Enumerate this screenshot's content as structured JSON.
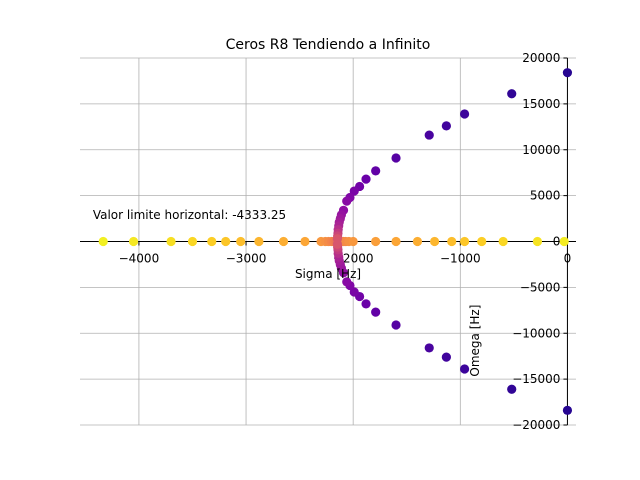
{
  "chart_data": {
    "type": "scatter",
    "title": "Ceros R8 Tendiendo a Infinito",
    "xlabel": "Sigma [Hz]",
    "ylabel": "Omega [Hz]",
    "xlim": [
      -4550,
      80
    ],
    "ylim": [
      -20000,
      20000
    ],
    "grid": true,
    "colormap": "plasma",
    "xticks": [
      -4000,
      -3000,
      -2000,
      -1000,
      0
    ],
    "xtick_labels": [
      "−4000",
      "−3000",
      "−2000",
      "−1000",
      "0"
    ],
    "yticks": [
      20000,
      15000,
      10000,
      5000,
      0,
      -5000,
      -10000,
      -15000,
      -20000
    ],
    "ytick_labels": [
      "20000",
      "15000",
      "10000",
      "5000",
      "0",
      "−5000",
      "−10000",
      "−15000",
      "−20000"
    ],
    "annotation": {
      "text": "Valor limite horizontal: -4333.25",
      "x": -4430,
      "y": 2900
    },
    "upper_branch": [
      {
        "x": 0,
        "y": 18400,
        "c": 0.05
      },
      {
        "x": -520,
        "y": 16100,
        "c": 0.07
      },
      {
        "x": -960,
        "y": 13900,
        "c": 0.09
      },
      {
        "x": -1130,
        "y": 12600,
        "c": 0.1
      },
      {
        "x": -1290,
        "y": 11600,
        "c": 0.12
      },
      {
        "x": -1600,
        "y": 9100,
        "c": 0.15
      },
      {
        "x": -1790,
        "y": 7700,
        "c": 0.18
      },
      {
        "x": -1880,
        "y": 6800,
        "c": 0.2
      },
      {
        "x": -1940,
        "y": 6000,
        "c": 0.22
      },
      {
        "x": -1990,
        "y": 5500,
        "c": 0.24
      },
      {
        "x": -2030,
        "y": 4800,
        "c": 0.26
      },
      {
        "x": -2060,
        "y": 4400,
        "c": 0.28
      },
      {
        "x": -2090,
        "y": 3400,
        "c": 0.3
      },
      {
        "x": -2110,
        "y": 2900,
        "c": 0.32
      },
      {
        "x": -2120,
        "y": 2500,
        "c": 0.34
      },
      {
        "x": -2130,
        "y": 2100,
        "c": 0.36
      },
      {
        "x": -2135,
        "y": 1700,
        "c": 0.38
      },
      {
        "x": -2140,
        "y": 1300,
        "c": 0.42
      },
      {
        "x": -2142,
        "y": 900,
        "c": 0.46
      },
      {
        "x": -2145,
        "y": 600,
        "c": 0.5
      },
      {
        "x": -2147,
        "y": 300,
        "c": 0.55
      }
    ],
    "real_axis": [
      {
        "x": -4333.25,
        "y": 0,
        "c": 0.98
      },
      {
        "x": -4050,
        "y": 0,
        "c": 0.96
      },
      {
        "x": -3700,
        "y": 0,
        "c": 0.94
      },
      {
        "x": -3500,
        "y": 0,
        "c": 0.92
      },
      {
        "x": -3320,
        "y": 0,
        "c": 0.9
      },
      {
        "x": -3190,
        "y": 0,
        "c": 0.88
      },
      {
        "x": -3050,
        "y": 0,
        "c": 0.86
      },
      {
        "x": -2880,
        "y": 0,
        "c": 0.84
      },
      {
        "x": -2650,
        "y": 0,
        "c": 0.82
      },
      {
        "x": -2450,
        "y": 0,
        "c": 0.8
      },
      {
        "x": -2300,
        "y": 0,
        "c": 0.76
      },
      {
        "x": -2260,
        "y": 0,
        "c": 0.74
      },
      {
        "x": -2230,
        "y": 0,
        "c": 0.72
      },
      {
        "x": -2200,
        "y": 0,
        "c": 0.7
      },
      {
        "x": -2180,
        "y": 0,
        "c": 0.68
      },
      {
        "x": -2160,
        "y": 0,
        "c": 0.66
      },
      {
        "x": -2145,
        "y": 0,
        "c": 0.64
      },
      {
        "x": -2130,
        "y": 0,
        "c": 0.66
      },
      {
        "x": -2110,
        "y": 0,
        "c": 0.68
      },
      {
        "x": -2090,
        "y": 0,
        "c": 0.7
      },
      {
        "x": -2070,
        "y": 0,
        "c": 0.72
      },
      {
        "x": -2040,
        "y": 0,
        "c": 0.74
      },
      {
        "x": -2000,
        "y": 0,
        "c": 0.76
      },
      {
        "x": -1790,
        "y": 0,
        "c": 0.78
      },
      {
        "x": -1600,
        "y": 0,
        "c": 0.8
      },
      {
        "x": -1400,
        "y": 0,
        "c": 0.82
      },
      {
        "x": -1240,
        "y": 0,
        "c": 0.84
      },
      {
        "x": -1080,
        "y": 0,
        "c": 0.86
      },
      {
        "x": -960,
        "y": 0,
        "c": 0.88
      },
      {
        "x": -800,
        "y": 0,
        "c": 0.9
      },
      {
        "x": -600,
        "y": 0,
        "c": 0.92
      },
      {
        "x": -280,
        "y": 0,
        "c": 0.95
      },
      {
        "x": -30,
        "y": 0,
        "c": 0.97
      }
    ]
  }
}
